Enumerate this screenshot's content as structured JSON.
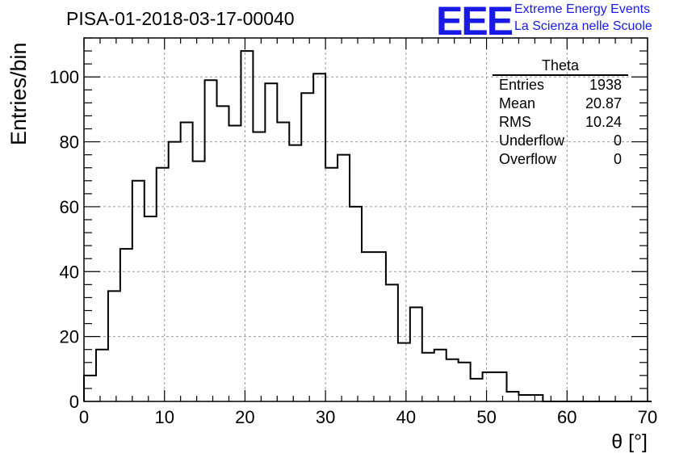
{
  "title": "PISA-01-2018-03-17-00040",
  "logo": {
    "mark": "EEE",
    "line1": "Extreme Energy Events",
    "line2": "La Scienza nelle Scuole",
    "color": "#1a1ae6"
  },
  "stats_box": {
    "title": "Theta",
    "rows": [
      {
        "label": "Entries",
        "value": "1938"
      },
      {
        "label": "Mean",
        "value": "20.87"
      },
      {
        "label": "RMS",
        "value": "10.24"
      },
      {
        "label": "Underflow",
        "value": "0"
      },
      {
        "label": "Overflow",
        "value": "0"
      }
    ]
  },
  "chart_data": {
    "type": "bar",
    "title": "PISA-01-2018-03-17-00040",
    "xlabel": "θ [°]",
    "ylabel": "Entries/bin",
    "xlim": [
      0,
      70
    ],
    "ylim": [
      0,
      112
    ],
    "bin_width": 1.5,
    "x_ticks": [
      0,
      10,
      20,
      30,
      40,
      50,
      60,
      70
    ],
    "y_ticks": [
      0,
      20,
      40,
      60,
      80,
      100
    ],
    "grid": true,
    "values": [
      8,
      16,
      34,
      47,
      68,
      57,
      72,
      80,
      86,
      74,
      99,
      91,
      85,
      108,
      83,
      98,
      86,
      79,
      95,
      101,
      72,
      76,
      60,
      46,
      46,
      36,
      18,
      29,
      15,
      16,
      13,
      12,
      7,
      9,
      9,
      3,
      2,
      2,
      0,
      0,
      0,
      0,
      0,
      0,
      0,
      0,
      0
    ]
  }
}
